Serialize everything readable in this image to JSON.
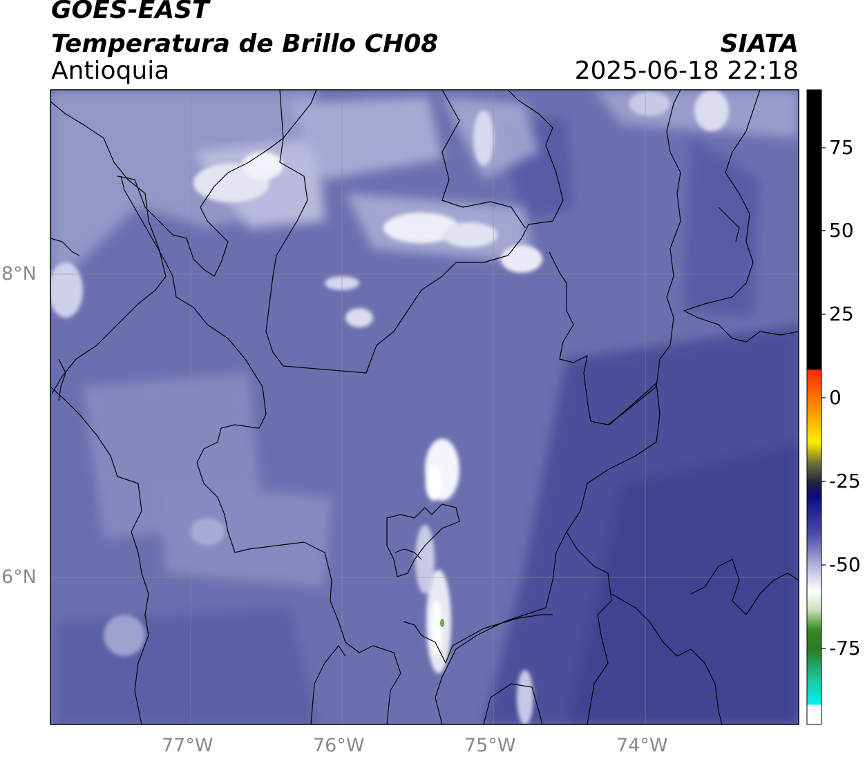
{
  "header": {
    "satellite": "GOES-EAST",
    "product": "Temperatura de Brillo CH08",
    "region": "Antioquia",
    "source": "SIATA",
    "timestamp": "2025-06-18 22:18"
  },
  "map": {
    "lon_range": [
      -77.95,
      -73.05
    ],
    "lat_range": [
      5.05,
      9.25
    ],
    "lon_ticks": [
      "77°W",
      "76°W",
      "75°W",
      "74°W"
    ],
    "lat_ticks": [
      "8°N",
      "6°N"
    ],
    "gridlines": true,
    "background_color": "#6c6faf"
  },
  "colorbar": {
    "ticks": [
      "75",
      "50",
      "25",
      "0",
      "-25",
      "-50",
      "-75"
    ],
    "range": [
      -95,
      90
    ],
    "colors": {
      "warm_top": "#000000",
      "red": "#ff2a00",
      "orange": "#ff9900",
      "yellow": "#ffff00",
      "dark": "#202040",
      "navy": "#0a0a80",
      "blue": "#4448a0",
      "pale": "#cfd0ea",
      "white": "#ffffff",
      "green": "#2a7a20",
      "teal": "#20c8a0",
      "cyan": "#00f0f0"
    }
  }
}
